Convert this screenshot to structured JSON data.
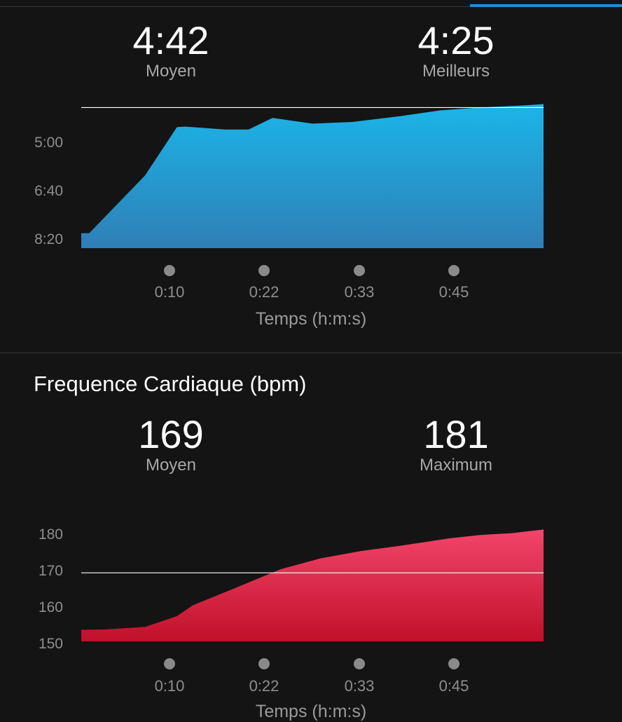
{
  "colors": {
    "background": "#141414",
    "accent_tab": "#1a8fd8",
    "pace_area_top": "#1bb5e8",
    "pace_area_bottom": "#2f7fb6",
    "hr_area_top": "#f2456a",
    "hr_area_bottom": "#c0102a",
    "reference_line": "#ffffff"
  },
  "pace": {
    "avg_value": "4:42",
    "avg_label": "Moyen",
    "best_value": "4:25",
    "best_label": "Meilleurs"
  },
  "heart_rate": {
    "section_title": "Frequence Cardiaque (bpm)",
    "avg_value": "169",
    "avg_label": "Moyen",
    "max_value": "181",
    "max_label": "Maximum"
  },
  "chart_data": [
    {
      "type": "area",
      "y_tick_labels": [
        "5:00",
        "6:40",
        "8:20"
      ],
      "y_tick_values": [
        300,
        400,
        500
      ],
      "y_axis_inverted": true,
      "ylim": [
        290,
        526
      ],
      "x_tick_labels": [
        "0:10",
        "0:22",
        "0:33",
        "0:45"
      ],
      "x_tick_values": [
        10,
        22,
        33,
        45
      ],
      "xlim": [
        0,
        58
      ],
      "xlabel": "Temps (h:m:s)",
      "reference_line": {
        "label_value": "4:42",
        "y": 282
      },
      "series": [
        {
          "x": [
            0,
            1,
            8,
            12,
            13,
            14,
            18,
            21,
            24,
            29,
            34,
            40,
            45,
            50,
            56,
            58
          ],
          "y": [
            500,
            500,
            400,
            316,
            315,
            316,
            320,
            320,
            300,
            310,
            307,
            297,
            287,
            282,
            278,
            276
          ]
        }
      ]
    },
    {
      "type": "area",
      "y_tick_labels": [
        "180",
        "170",
        "160",
        "150"
      ],
      "y_tick_values": [
        180,
        170,
        160,
        150
      ],
      "ylim": [
        150,
        184
      ],
      "x_tick_labels": [
        "0:10",
        "0:22",
        "0:33",
        "0:45"
      ],
      "x_tick_values": [
        10,
        22,
        33,
        45
      ],
      "xlim": [
        0,
        58
      ],
      "xlabel": "Temps (h:m:s)",
      "reference_line": {
        "label_value": "169",
        "y": 169
      },
      "series": [
        {
          "x": [
            0,
            3,
            8,
            12,
            14,
            19,
            25,
            30,
            35,
            40,
            46,
            50,
            54,
            58
          ],
          "y": [
            153.2,
            153.3,
            154,
            157,
            160,
            164.5,
            170,
            173,
            175,
            176.5,
            178.5,
            179.5,
            180,
            181
          ]
        }
      ]
    }
  ]
}
